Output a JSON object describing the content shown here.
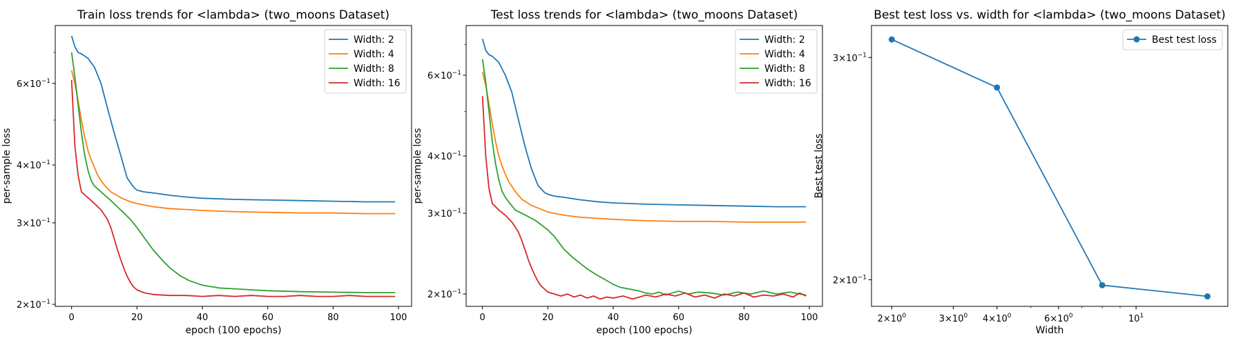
{
  "chart_data": [
    {
      "type": "line",
      "title": "Train loss trends for <lambda> (two_moons Dataset)",
      "xlabel": "epoch (100 epochs)",
      "ylabel": "per-sample loss",
      "yscale": "log",
      "xlim": [
        -5,
        104
      ],
      "ylim": [
        0.198,
        0.8
      ],
      "xticks": [
        0,
        20,
        40,
        60,
        80,
        100
      ],
      "yticks": [
        {
          "value": 0.6,
          "base": "6",
          "exp": "-1"
        },
        {
          "value": 0.4,
          "base": "4",
          "exp": "-1"
        },
        {
          "value": 0.3,
          "base": "3",
          "exp": "-1"
        },
        {
          "value": 0.2,
          "base": "2",
          "exp": "-1"
        }
      ],
      "legend": "top-right",
      "series": [
        {
          "name": "Width: 2",
          "color": "#1f77b4",
          "x": [
            0,
            1,
            2,
            3,
            5,
            7,
            9,
            11,
            13,
            15,
            17,
            19,
            20,
            22,
            25,
            30,
            35,
            40,
            50,
            60,
            70,
            80,
            90,
            99
          ],
          "y": [
            0.76,
            0.72,
            0.7,
            0.695,
            0.68,
            0.65,
            0.6,
            0.53,
            0.47,
            0.42,
            0.375,
            0.358,
            0.353,
            0.35,
            0.348,
            0.344,
            0.341,
            0.339,
            0.337,
            0.336,
            0.335,
            0.334,
            0.333,
            0.333
          ]
        },
        {
          "name": "Width: 4",
          "color": "#ff7f0e",
          "x": [
            0,
            1,
            2,
            3,
            4,
            5,
            6,
            7,
            8,
            9,
            10,
            12,
            15,
            18,
            20,
            25,
            30,
            40,
            50,
            60,
            70,
            80,
            90,
            99
          ],
          "y": [
            0.64,
            0.6,
            0.55,
            0.5,
            0.46,
            0.43,
            0.41,
            0.395,
            0.38,
            0.37,
            0.362,
            0.35,
            0.34,
            0.333,
            0.33,
            0.325,
            0.322,
            0.319,
            0.317,
            0.316,
            0.315,
            0.315,
            0.314,
            0.314
          ]
        },
        {
          "name": "Width: 8",
          "color": "#2ca02c",
          "x": [
            0,
            1,
            2,
            3,
            4,
            5,
            6,
            7,
            8,
            10,
            12,
            14,
            16,
            18,
            20,
            22,
            25,
            28,
            30,
            33,
            36,
            40,
            45,
            50,
            55,
            60,
            70,
            80,
            90,
            99
          ],
          "y": [
            0.7,
            0.62,
            0.54,
            0.47,
            0.42,
            0.39,
            0.37,
            0.36,
            0.355,
            0.345,
            0.335,
            0.325,
            0.315,
            0.305,
            0.293,
            0.28,
            0.262,
            0.248,
            0.24,
            0.231,
            0.225,
            0.22,
            0.217,
            0.216,
            0.215,
            0.214,
            0.213,
            0.2125,
            0.212,
            0.212
          ]
        },
        {
          "name": "Width: 16",
          "color": "#d62728",
          "x": [
            0,
            1,
            2,
            3,
            5,
            7,
            9,
            11,
            12,
            13,
            14,
            15,
            16,
            17,
            18,
            19,
            20,
            22,
            25,
            30,
            35,
            40,
            45,
            50,
            55,
            60,
            65,
            70,
            75,
            80,
            85,
            90,
            95,
            99
          ],
          "y": [
            0.61,
            0.44,
            0.38,
            0.35,
            0.34,
            0.33,
            0.32,
            0.305,
            0.293,
            0.278,
            0.263,
            0.25,
            0.239,
            0.23,
            0.223,
            0.218,
            0.215,
            0.212,
            0.21,
            0.209,
            0.209,
            0.208,
            0.209,
            0.208,
            0.209,
            0.208,
            0.208,
            0.209,
            0.208,
            0.208,
            0.209,
            0.208,
            0.208,
            0.208
          ]
        }
      ]
    },
    {
      "type": "line",
      "title": "Test loss trends for <lambda> (two_moons Dataset)",
      "xlabel": "epoch (100 epochs)",
      "ylabel": "per-sample loss",
      "yscale": "log",
      "xlim": [
        -5,
        104
      ],
      "ylim": [
        0.188,
        0.77
      ],
      "xticks": [
        0,
        20,
        40,
        60,
        80,
        100
      ],
      "yticks": [
        {
          "value": 0.6,
          "base": "6",
          "exp": "-1"
        },
        {
          "value": 0.4,
          "base": "4",
          "exp": "-1"
        },
        {
          "value": 0.3,
          "base": "3",
          "exp": "-1"
        },
        {
          "value": 0.2,
          "base": "2",
          "exp": "-1"
        }
      ],
      "legend": "top-right",
      "series": [
        {
          "name": "Width: 2",
          "color": "#1f77b4",
          "x": [
            0,
            1,
            2,
            3,
            5,
            7,
            9,
            11,
            13,
            15,
            17,
            19,
            20,
            22,
            25,
            30,
            35,
            40,
            50,
            60,
            70,
            80,
            90,
            99
          ],
          "y": [
            0.72,
            0.68,
            0.665,
            0.66,
            0.64,
            0.6,
            0.55,
            0.48,
            0.42,
            0.375,
            0.345,
            0.333,
            0.33,
            0.327,
            0.325,
            0.321,
            0.318,
            0.316,
            0.314,
            0.313,
            0.312,
            0.311,
            0.31,
            0.31
          ]
        },
        {
          "name": "Width: 4",
          "color": "#ff7f0e",
          "x": [
            0,
            1,
            2,
            3,
            4,
            5,
            6,
            7,
            8,
            10,
            12,
            15,
            18,
            20,
            25,
            30,
            40,
            50,
            60,
            70,
            80,
            90,
            99
          ],
          "y": [
            0.61,
            0.57,
            0.52,
            0.47,
            0.43,
            0.4,
            0.38,
            0.365,
            0.352,
            0.335,
            0.322,
            0.312,
            0.306,
            0.302,
            0.297,
            0.294,
            0.291,
            0.289,
            0.288,
            0.288,
            0.287,
            0.287,
            0.287
          ]
        },
        {
          "name": "Width: 8",
          "color": "#2ca02c",
          "x": [
            0,
            1,
            2,
            3,
            4,
            5,
            6,
            7,
            8,
            10,
            12,
            14,
            16,
            18,
            20,
            22,
            25,
            28,
            30,
            32,
            35,
            38,
            40,
            42,
            45,
            48,
            50,
            52,
            54,
            56,
            58,
            60,
            63,
            66,
            70,
            74,
            78,
            82,
            86,
            90,
            94,
            97,
            99
          ],
          "y": [
            0.65,
            0.58,
            0.5,
            0.43,
            0.385,
            0.355,
            0.335,
            0.325,
            0.318,
            0.305,
            0.3,
            0.295,
            0.29,
            0.283,
            0.276,
            0.267,
            0.25,
            0.239,
            0.233,
            0.227,
            0.22,
            0.214,
            0.21,
            0.207,
            0.205,
            0.203,
            0.201,
            0.2,
            0.202,
            0.199,
            0.201,
            0.203,
            0.2,
            0.202,
            0.201,
            0.199,
            0.202,
            0.2,
            0.203,
            0.2,
            0.202,
            0.2,
            0.199
          ]
        },
        {
          "name": "Width: 16",
          "color": "#d62728",
          "x": [
            0,
            1,
            2,
            3,
            5,
            7,
            9,
            11,
            12,
            13,
            14,
            15,
            16,
            17,
            18,
            19,
            20,
            22,
            24,
            26,
            28,
            30,
            32,
            34,
            36,
            38,
            40,
            43,
            46,
            50,
            53,
            56,
            59,
            62,
            65,
            68,
            71,
            74,
            77,
            80,
            83,
            86,
            89,
            92,
            95,
            97,
            99
          ],
          "y": [
            0.54,
            0.4,
            0.34,
            0.315,
            0.305,
            0.297,
            0.287,
            0.273,
            0.262,
            0.25,
            0.238,
            0.228,
            0.22,
            0.213,
            0.208,
            0.205,
            0.202,
            0.2,
            0.198,
            0.2,
            0.197,
            0.199,
            0.196,
            0.198,
            0.195,
            0.197,
            0.196,
            0.198,
            0.195,
            0.199,
            0.197,
            0.2,
            0.198,
            0.201,
            0.197,
            0.199,
            0.196,
            0.2,
            0.198,
            0.201,
            0.197,
            0.199,
            0.198,
            0.2,
            0.197,
            0.201,
            0.198
          ]
        }
      ]
    },
    {
      "type": "line",
      "title": "Best test loss vs. width for <lambda> (two_moons Dataset)",
      "xlabel": "Width",
      "ylabel": "Best test loss",
      "xscale": "log",
      "yscale": "log",
      "xlim": [
        1.75,
        18.3
      ],
      "ylim": [
        0.1905,
        0.318
      ],
      "xticks": [
        {
          "value": 2,
          "base": "2",
          "exp": "0"
        },
        {
          "value": 3,
          "base": "3",
          "exp": "0"
        },
        {
          "value": 4,
          "base": "4",
          "exp": "0"
        },
        {
          "value": 6,
          "base": "6",
          "exp": "0"
        },
        {
          "value": 10,
          "base": "10",
          "exp": "1"
        }
      ],
      "yticks": [
        {
          "value": 0.3,
          "base": "3",
          "exp": "-1"
        },
        {
          "value": 0.2,
          "base": "2",
          "exp": "-1"
        }
      ],
      "legend": "top-right",
      "series": [
        {
          "name": "Best test loss",
          "color": "#1f77b4",
          "x": [
            2,
            4,
            8,
            16
          ],
          "y": [
            0.31,
            0.284,
            0.198,
            0.194
          ]
        }
      ]
    }
  ]
}
